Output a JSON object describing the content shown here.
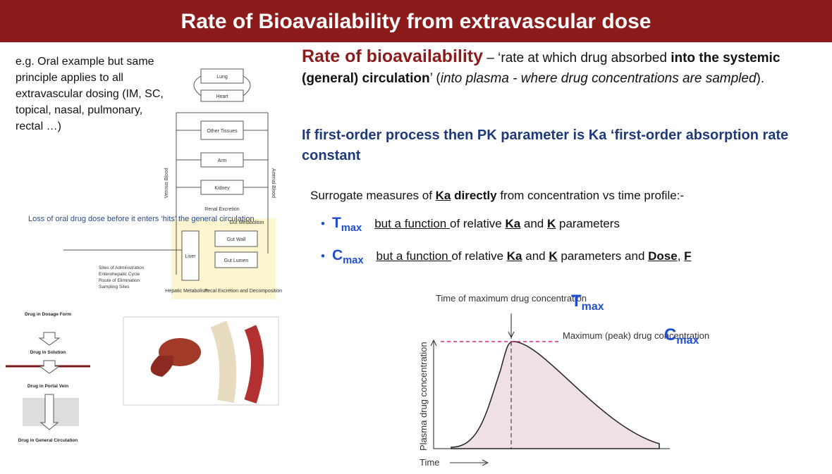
{
  "header": {
    "title": "Rate of Bioavailability from extravascular dose"
  },
  "left_note": "e.g. Oral example but same principle applies to all extravascular dosing (IM, SC, topical, nasal, pulmonary, rectal …)",
  "physiology": {
    "boxes": [
      "Lung",
      "Heart",
      "Other Tissues",
      "Arm",
      "Kidney",
      "Gut Wall",
      "Gut Lumen",
      "Liver"
    ],
    "labels": [
      "Renal Excretion",
      "Gut Metabolism",
      "Hepatic Metabolism",
      "Fecal Excretion and Decomposition",
      "Venous Blood",
      "Arterial Blood"
    ],
    "legend": [
      "Sites of Administration",
      "Enterohepatic Cycle",
      "Route of Elimination",
      "Sampling Sites"
    ],
    "loss_note": "Loss of oral drug dose before it enters ‘hits’ the general circulation"
  },
  "flow": [
    "Drug in Dosage Form",
    "Drug in Solution",
    "Drug in Portal Vein",
    "Drug in General Circulation"
  ],
  "definition": {
    "term": "Rate of bioavailability",
    "parts": [
      " – ‘rate at which drug absorbed ",
      "into the systemic (general) circulation",
      "’ (",
      "into plasma - where drug concentrations are sampled",
      ")."
    ]
  },
  "first_order": "If first-order process then PK parameter is  Ka ‘first-order absorption rate constant",
  "surrogate": {
    "parts": [
      "Surrogate measures of ",
      "Ka",
      " directly",
      " from concentration vs time profile:-"
    ]
  },
  "bullets": [
    {
      "symbol": "T",
      "sub": "max",
      "parts": [
        "but a function ",
        "of relative ",
        "Ka",
        " and ",
        "K",
        " parameters"
      ]
    },
    {
      "symbol": "C",
      "sub": "max",
      "parts": [
        "but a function ",
        "of relative ",
        "Ka",
        " and ",
        "K",
        " parameters and ",
        "Dose",
        ",  ",
        "F"
      ]
    }
  ],
  "graph": {
    "tmax_text": "Time of maximum drug concentration",
    "tmax_symbol": "T",
    "tmax_sub": "max",
    "cmax_text": "Maximum (peak) drug concentration",
    "cmax_symbol": "C",
    "cmax_sub": "max",
    "y_label": "Plasma drug concentration",
    "x_label": "Time"
  }
}
